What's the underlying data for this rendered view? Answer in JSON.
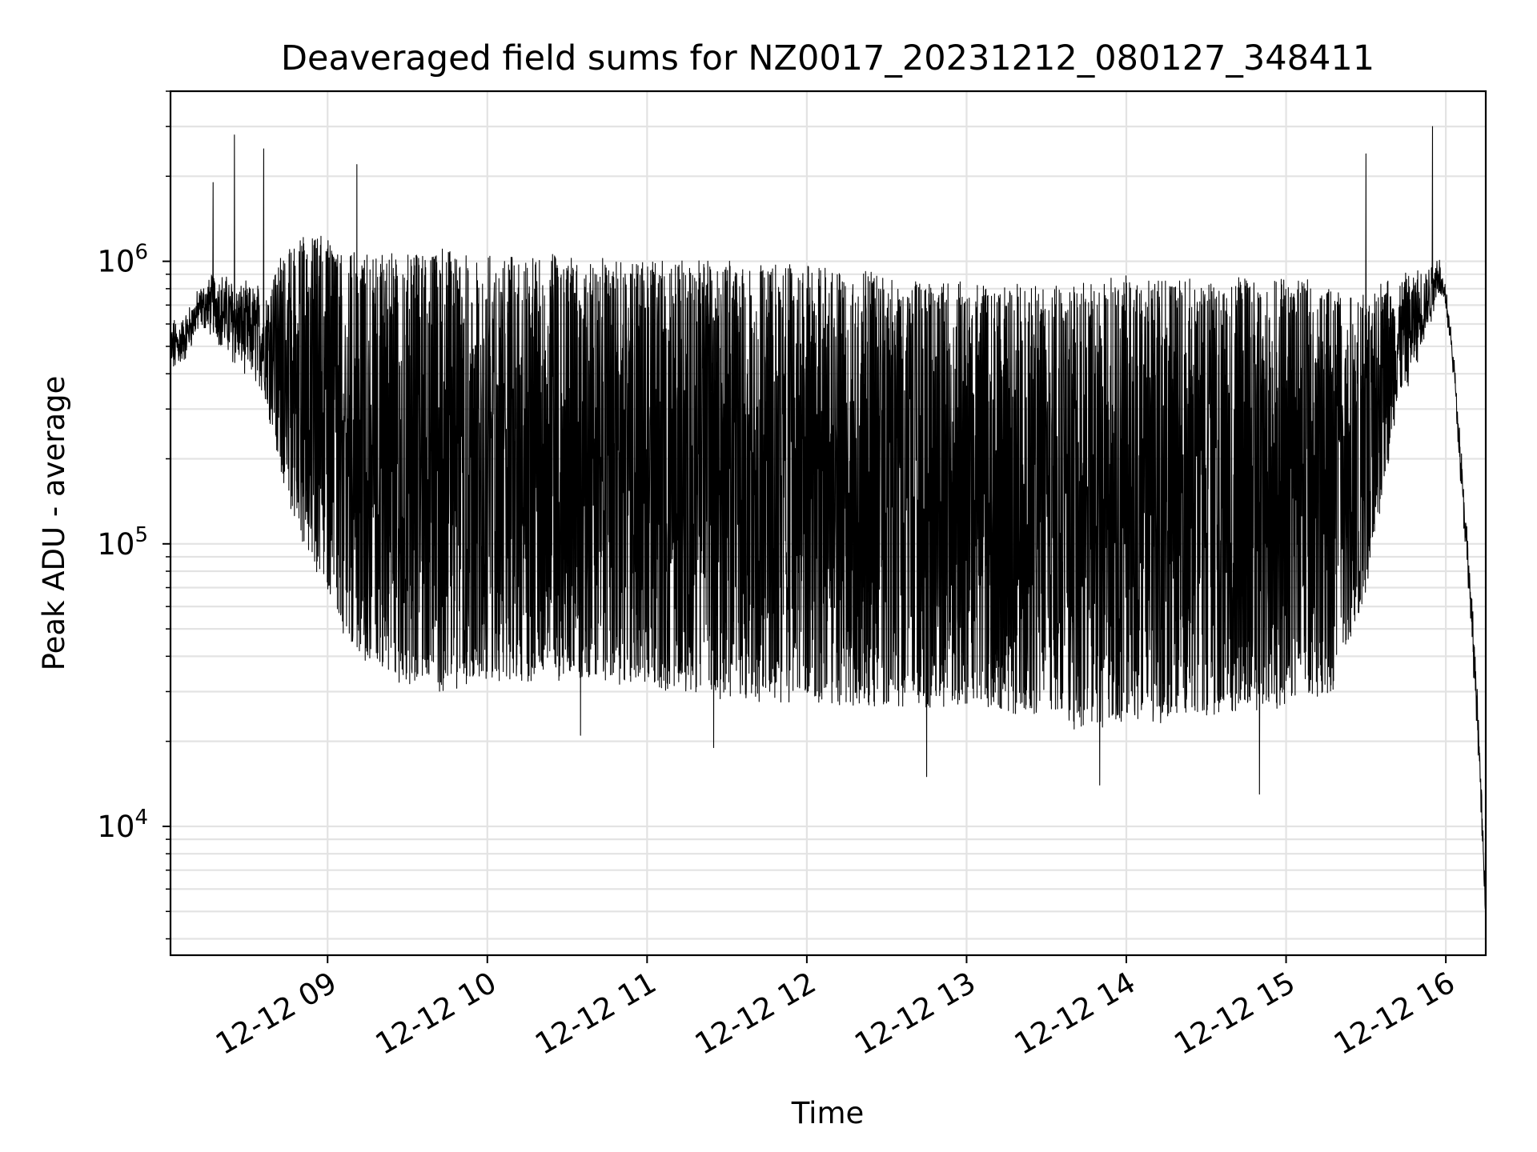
{
  "chart_data": {
    "type": "line",
    "title": "Deaveraged field sums for NZ0017_20231212_080127_348411",
    "xlabel": "Time",
    "ylabel": "Peak ADU - average",
    "yscale": "log",
    "xlim": [
      "12-12 08:01",
      "12-12 16:15"
    ],
    "ylim": [
      3500,
      4000000
    ],
    "grid": true,
    "legend": "none",
    "line_color": "#000000",
    "x_ticks": [
      "12-12 09",
      "12-12 10",
      "12-12 11",
      "12-12 12",
      "12-12 13",
      "12-12 14",
      "12-12 15",
      "12-12 16"
    ],
    "y_ticks": [
      {
        "base": "10",
        "exp": "4",
        "value": 10000
      },
      {
        "base": "10",
        "exp": "5",
        "value": 100000
      },
      {
        "base": "10",
        "exp": "6",
        "value": 1000000
      }
    ],
    "envelope": {
      "time_hours": [
        8.02,
        8.1,
        8.2,
        8.3,
        8.4,
        8.5,
        8.6,
        8.7,
        8.8,
        8.9,
        9.0,
        9.1,
        9.2,
        9.3,
        9.5,
        9.7,
        10.0,
        10.5,
        11.0,
        11.5,
        12.0,
        12.5,
        13.0,
        13.5,
        13.8,
        14.0,
        14.5,
        15.0,
        15.2,
        15.3,
        15.4,
        15.5,
        15.6,
        15.7,
        15.8,
        15.9,
        15.95,
        16.0,
        16.05,
        16.1,
        16.15,
        16.2,
        16.25
      ],
      "upper": [
        600000,
        620000,
        780000,
        900000,
        850000,
        800000,
        820000,
        1000000,
        1100000,
        1200000,
        1150000,
        1100000,
        1050000,
        1000000,
        1000000,
        1050000,
        1000000,
        1000000,
        950000,
        950000,
        900000,
        850000,
        800000,
        780000,
        800000,
        850000,
        800000,
        850000,
        800000,
        750000,
        700000,
        750000,
        800000,
        850000,
        900000,
        950000,
        1050000,
        800000,
        450000,
        200000,
        80000,
        30000,
        5000
      ],
      "lower": [
        400000,
        450000,
        600000,
        550000,
        450000,
        400000,
        350000,
        200000,
        120000,
        90000,
        70000,
        50000,
        40000,
        38000,
        33000,
        32000,
        34000,
        35000,
        33000,
        30000,
        29000,
        28000,
        27000,
        26000,
        22000,
        24000,
        26000,
        28000,
        30000,
        32000,
        45000,
        70000,
        150000,
        300000,
        400000,
        600000,
        800000,
        700000,
        400000,
        150000,
        60000,
        20000,
        4500
      ]
    },
    "spikes": [
      {
        "time": "12-12 08:17",
        "value": 1900000
      },
      {
        "time": "12-12 08:25",
        "value": 2800000
      },
      {
        "time": "12-12 08:36",
        "value": 2500000
      },
      {
        "time": "12-12 09:11",
        "value": 2200000
      },
      {
        "time": "12-12 15:30",
        "value": 2400000
      },
      {
        "time": "12-12 15:55",
        "value": 3000000
      },
      {
        "time": "12-12 13:50",
        "value": 14000
      },
      {
        "time": "12-12 14:50",
        "value": 13000
      },
      {
        "time": "12-12 12:45",
        "value": 15000
      },
      {
        "time": "12-12 10:35",
        "value": 21000
      },
      {
        "time": "12-12 11:25",
        "value": 19000
      }
    ]
  }
}
